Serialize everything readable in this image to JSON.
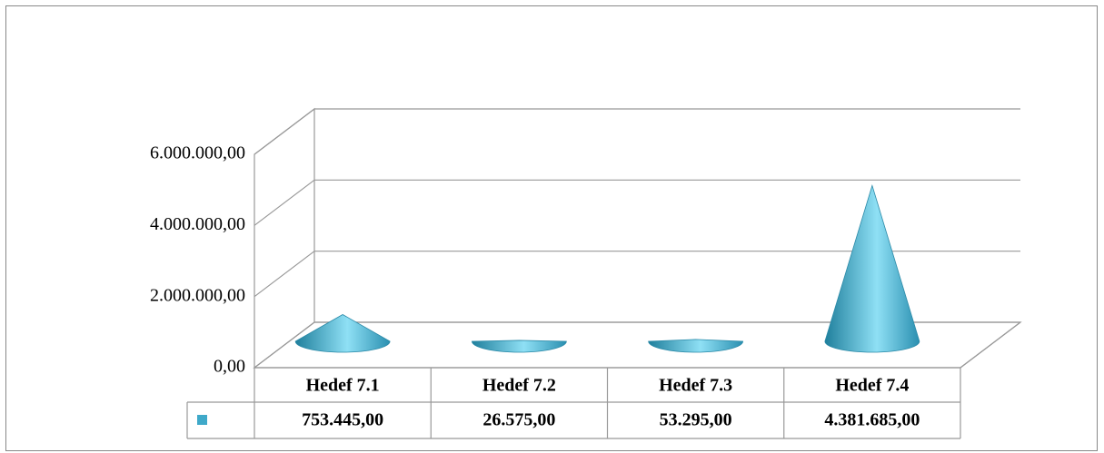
{
  "chart_data": {
    "type": "cone",
    "categories": [
      "Hedef 7.1",
      "Hedef 7.2",
      "Hedef 7.3",
      "Hedef 7.4"
    ],
    "values": [
      753445,
      26575,
      53295,
      4381685
    ],
    "value_labels": [
      "753.445,00",
      "26.575,00",
      "53.295,00",
      "4.381.685,00"
    ],
    "color": "#3fa9c9",
    "ylim": [
      0,
      6000000
    ],
    "yticks": [
      {
        "value": 0,
        "label": "0,00"
      },
      {
        "value": 2000000,
        "label": "2.000.000,00"
      },
      {
        "value": 4000000,
        "label": "4.000.000,00"
      },
      {
        "value": 6000000,
        "label": "6.000.000,00"
      }
    ],
    "grid": true
  }
}
